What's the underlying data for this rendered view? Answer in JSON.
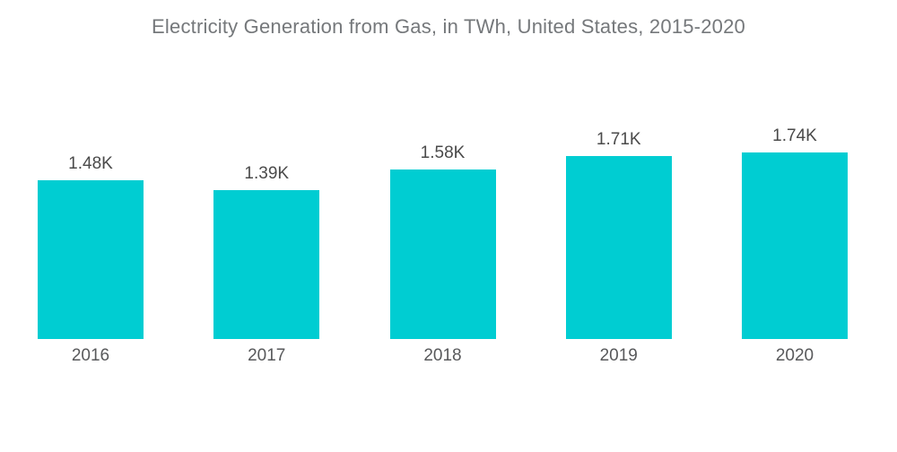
{
  "colors": {
    "bar": "#00CDD2",
    "title_text": "#75787B",
    "value_label_text": "#4A4A4A",
    "axis_label_text": "#58595B",
    "background": "#FFFFFF"
  },
  "chart_data": {
    "type": "bar",
    "title": "Electricity Generation from Gas, in TWh, United States, 2015-2020",
    "categories": [
      "2016",
      "2017",
      "2018",
      "2019",
      "2020"
    ],
    "values": [
      1480,
      1390,
      1580,
      1710,
      1740
    ],
    "value_labels": [
      "1.48K",
      "1.39K",
      "1.58K",
      "1.71K",
      "1.74K"
    ],
    "unit": "TWh",
    "xlabel": "",
    "ylabel": "",
    "ylim": [
      0,
      1740
    ],
    "grid": false,
    "legend": false,
    "axes_drawn": false,
    "bar_label_position": "above",
    "category_label_position": "below"
  }
}
